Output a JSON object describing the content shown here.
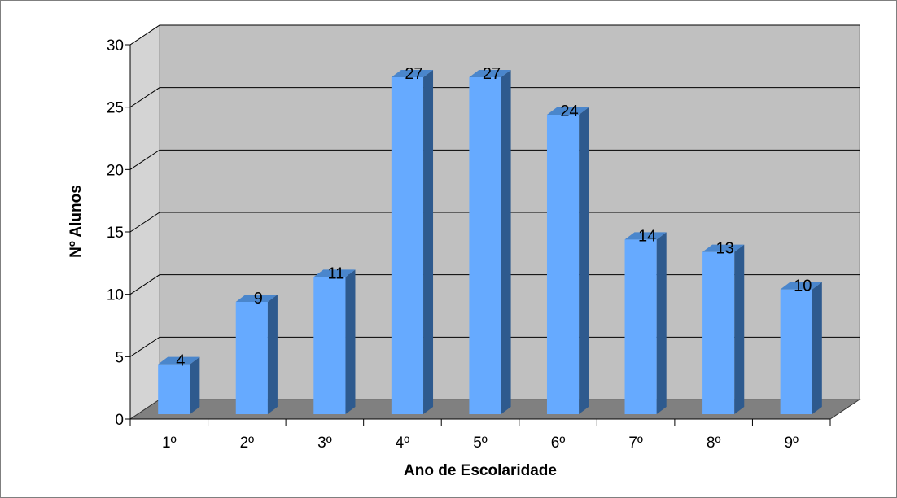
{
  "chart_data": {
    "type": "bar",
    "title": "",
    "xlabel": "Ano de Escolaridade",
    "ylabel": "Nº Alunos",
    "categories": [
      "1º",
      "2º",
      "3º",
      "4º",
      "5º",
      "6º",
      "7º",
      "8º",
      "9º"
    ],
    "values": [
      4,
      9,
      11,
      27,
      27,
      24,
      14,
      13,
      10
    ],
    "ylim": [
      0,
      30
    ],
    "yticks": [
      0,
      5,
      10,
      15,
      20,
      25,
      30
    ],
    "grid": true,
    "data_labels": true,
    "style": "3d-column",
    "colors": {
      "bar_front": "#66aaff",
      "bar_side": "#2e5a8e",
      "bar_top": "#4a86cc",
      "back_wall": "#c0c0c0",
      "side_wall": "#d4d4d4",
      "floor": "#808080"
    }
  }
}
